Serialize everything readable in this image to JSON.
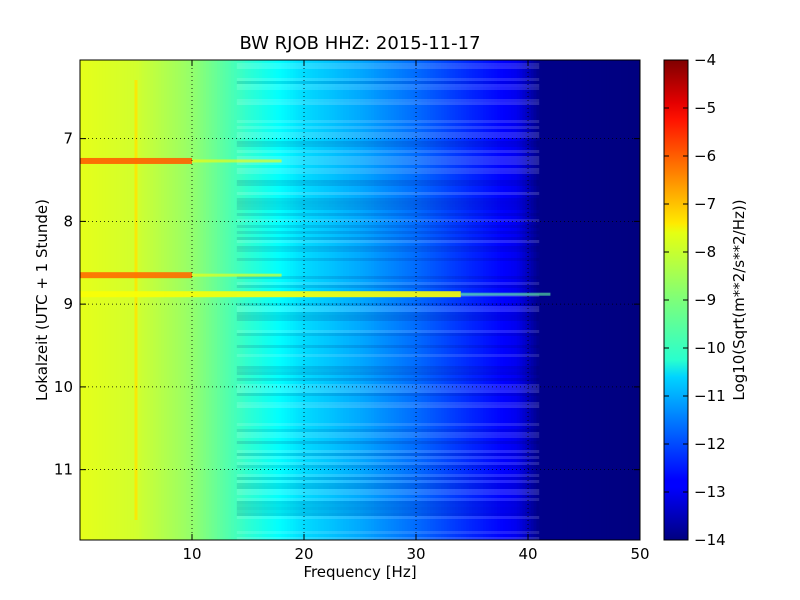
{
  "chart_data": {
    "type": "heatmap",
    "title": "BW RJOB HHZ: 2015-11-17",
    "xlabel": "Frequency [Hz]",
    "ylabel": "Lokalzeit (UTC + 1 Stunde)",
    "xlim": [
      0,
      50
    ],
    "ylim": [
      11.85,
      6.05
    ],
    "x_ticks": [
      10,
      20,
      30,
      40,
      50
    ],
    "y_ticks": [
      7,
      8,
      9,
      10,
      11
    ],
    "grid": true,
    "colorbar": {
      "label": "Log10(Sqrt(m**2/s**2/Hz))",
      "range": [
        -14,
        -4
      ],
      "ticks": [
        -4,
        -5,
        -6,
        -7,
        -8,
        -9,
        -10,
        -11,
        -12,
        -13,
        -14
      ],
      "colormap": "jet"
    },
    "spectral_profile": [
      {
        "freq": 0,
        "value": -8.0
      },
      {
        "freq": 5,
        "value": -8.2
      },
      {
        "freq": 10,
        "value": -8.8
      },
      {
        "freq": 15,
        "value": -9.8
      },
      {
        "freq": 20,
        "value": -10.6
      },
      {
        "freq": 25,
        "value": -11.1
      },
      {
        "freq": 30,
        "value": -11.7
      },
      {
        "freq": 35,
        "value": -12.4
      },
      {
        "freq": 39,
        "value": -12.9
      },
      {
        "freq": 41,
        "value": -13.9
      },
      {
        "freq": 50,
        "value": -14.0
      }
    ],
    "features": [
      {
        "type": "line",
        "freq": 5,
        "value": -7.5
      },
      {
        "type": "event",
        "time": 7.27,
        "value": -6.2
      },
      {
        "type": "event",
        "time": 8.65,
        "value": -6.3
      },
      {
        "type": "event",
        "time": 8.88,
        "value": -7.8
      }
    ]
  }
}
